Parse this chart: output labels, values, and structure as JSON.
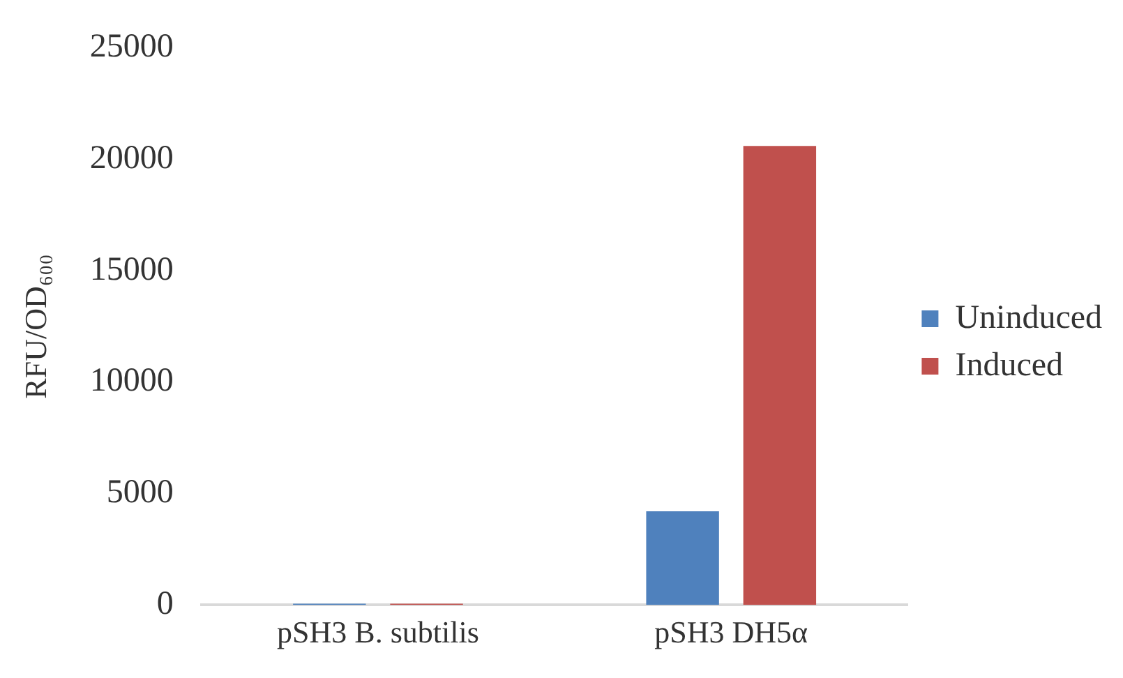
{
  "chart_data": {
    "type": "bar",
    "ylabel": "RFU/OD₆₀₀",
    "categories": [
      "pSH3 B. subtilis",
      "pSH3 DH5α"
    ],
    "series": [
      {
        "name": "Uninduced",
        "color": "#4f81bd",
        "values": [
          50,
          4200
        ]
      },
      {
        "name": "Induced",
        "color": "#c0504d",
        "values": [
          50,
          20600
        ]
      }
    ],
    "ylim": [
      0,
      25000
    ],
    "yticks": [
      0,
      5000,
      10000,
      15000,
      20000,
      25000
    ],
    "grid": false,
    "legend": "right"
  }
}
